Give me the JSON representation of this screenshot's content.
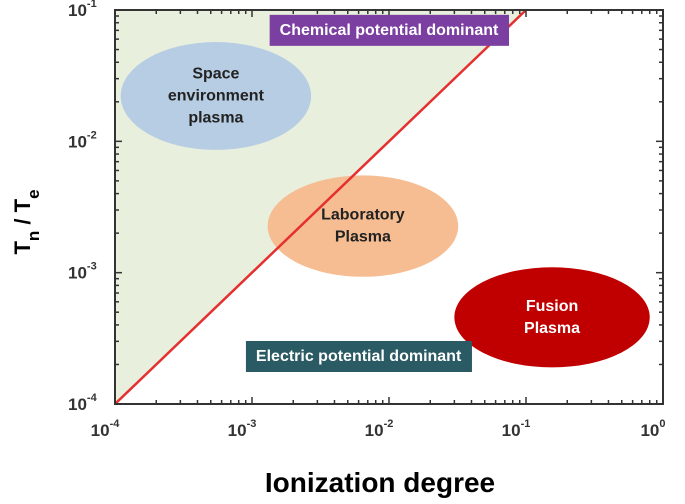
{
  "chart_data": {
    "type": "scatter",
    "xscale": "log",
    "yscale": "log",
    "xlim": [
      0.0001,
      1
    ],
    "ylim": [
      0.0001,
      0.1
    ],
    "xlabel": "Ionization degree",
    "ylabel": {
      "main": "T",
      "sub": "n",
      "mid": " / T",
      "sub2": "e"
    },
    "x_ticks": [
      {
        "value": 0.0001,
        "base": "10",
        "exp": "-4"
      },
      {
        "value": 0.001,
        "base": "10",
        "exp": "-3"
      },
      {
        "value": 0.01,
        "base": "10",
        "exp": "-2"
      },
      {
        "value": 0.1,
        "base": "10",
        "exp": "-1"
      },
      {
        "value": 1,
        "base": "10",
        "exp": "0"
      }
    ],
    "y_ticks": [
      {
        "value": 0.0001,
        "base": "10",
        "exp": "-4"
      },
      {
        "value": 0.001,
        "base": "10",
        "exp": "-3"
      },
      {
        "value": 0.01,
        "base": "10",
        "exp": "-2"
      },
      {
        "value": 0.1,
        "base": "10",
        "exp": "-1"
      }
    ],
    "boundary_line": {
      "x": [
        0.0001,
        0.1
      ],
      "y": [
        0.0001,
        0.1
      ],
      "color": "#e53030"
    },
    "shaded_region_color": "#e8efdd",
    "regions": [
      {
        "label": "Chemical  potential dominant",
        "bg": "#7b3fa1",
        "x_center": 0.01,
        "y_center": 0.07
      },
      {
        "label": "Electric potential dominant",
        "bg": "#2a5a63",
        "x_center": 0.006,
        "y_center": 0.00023
      }
    ],
    "ellipses": [
      {
        "lines": [
          "Space",
          "environment",
          "plasma"
        ],
        "x_center": 0.00055,
        "y_center": 0.022,
        "x_range": [
          0.00011,
          0.0027
        ],
        "y_range": [
          0.0086,
          0.057
        ],
        "fill": "#b7cde4",
        "text_color": "#222222"
      },
      {
        "lines": [
          "Laboratory",
          "Plasma"
        ],
        "x_center": 0.0065,
        "y_center": 0.0022,
        "x_range": [
          0.0013,
          0.032
        ],
        "y_range": [
          0.00093,
          0.0055
        ],
        "fill": "#f7bd92",
        "text_color": "#222222"
      },
      {
        "lines": [
          "Fusion",
          "Plasma"
        ],
        "x_center": 0.16,
        "y_center": 0.00045,
        "x_range": [
          0.03,
          0.8
        ],
        "y_range": [
          0.00019,
          0.0011
        ],
        "fill": "#c00000",
        "text_color": "#ffffff"
      }
    ]
  }
}
